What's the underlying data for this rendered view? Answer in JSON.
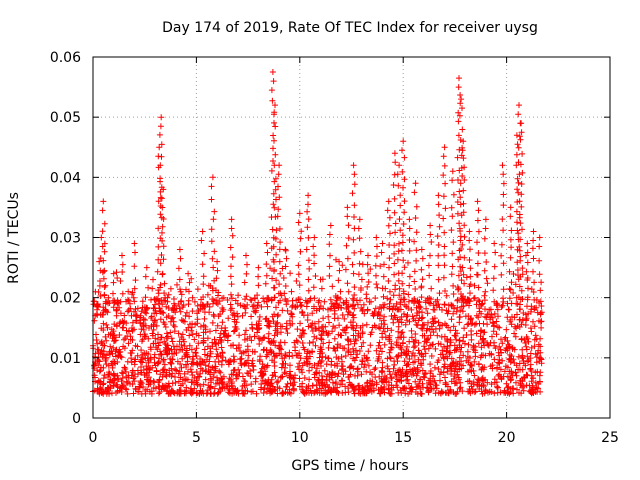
{
  "chart_data": {
    "type": "scatter",
    "title": "Day 174 of 2019, Rate Of TEC Index for receiver uysg",
    "xlabel": "GPS time / hours",
    "ylabel": "ROTI / TECUs",
    "xlim": [
      0,
      25
    ],
    "ylim": [
      0,
      0.06
    ],
    "xticks": [
      0,
      5,
      10,
      15,
      20,
      25
    ],
    "xtick_labels": [
      "0",
      "5",
      "10",
      "15",
      "20",
      "25"
    ],
    "yticks": [
      0,
      0.01,
      0.02,
      0.03,
      0.04,
      0.05,
      0.06
    ],
    "ytick_labels": [
      "0",
      "0.01",
      "0.02",
      "0.03",
      "0.04",
      "0.05",
      "0.06"
    ],
    "grid": true,
    "marker": "plus",
    "color": "#ff0000",
    "series": [
      {
        "name": "ROTI",
        "x": [
          0.0,
          0.2,
          0.3,
          0.4,
          0.5,
          0.6,
          0.7,
          0.8,
          1.0,
          1.2,
          1.4,
          1.5,
          1.7,
          2.0,
          2.3,
          2.6,
          2.9,
          3.2,
          3.3,
          3.4,
          3.6,
          3.9,
          4.2,
          4.6,
          5.0,
          5.3,
          5.6,
          5.8,
          6.0,
          6.3,
          6.7,
          7.0,
          7.4,
          7.7,
          8.0,
          8.4,
          8.7,
          8.8,
          9.0,
          9.3,
          9.6,
          10.0,
          10.4,
          10.7,
          11.0,
          11.5,
          11.9,
          12.3,
          12.6,
          12.9,
          13.3,
          13.7,
          14.0,
          14.3,
          14.6,
          14.8,
          15.0,
          15.3,
          15.6,
          15.9,
          16.3,
          16.7,
          17.0,
          17.4,
          17.7,
          17.8,
          17.9,
          18.2,
          18.6,
          19.0,
          19.4,
          19.8,
          20.2,
          20.5,
          20.6,
          20.7,
          21.0,
          21.3,
          21.6
        ],
        "y": [
          0.012,
          0.018,
          0.026,
          0.03,
          0.036,
          0.022,
          0.015,
          0.011,
          0.024,
          0.019,
          0.027,
          0.013,
          0.021,
          0.029,
          0.017,
          0.025,
          0.023,
          0.045,
          0.05,
          0.038,
          0.02,
          0.016,
          0.028,
          0.024,
          0.014,
          0.031,
          0.022,
          0.04,
          0.026,
          0.018,
          0.033,
          0.019,
          0.027,
          0.015,
          0.025,
          0.029,
          0.0575,
          0.052,
          0.042,
          0.028,
          0.021,
          0.034,
          0.037,
          0.03,
          0.023,
          0.032,
          0.026,
          0.035,
          0.042,
          0.033,
          0.027,
          0.03,
          0.029,
          0.036,
          0.044,
          0.042,
          0.046,
          0.033,
          0.039,
          0.028,
          0.032,
          0.037,
          0.045,
          0.041,
          0.0565,
          0.053,
          0.046,
          0.031,
          0.036,
          0.033,
          0.029,
          0.042,
          0.035,
          0.047,
          0.052,
          0.049,
          0.029,
          0.031,
          0.03
        ]
      }
    ],
    "dense_band": {
      "x_range": [
        0,
        21.7
      ],
      "y_range": [
        0.004,
        0.02
      ],
      "note": "background band of thousands of points"
    }
  }
}
